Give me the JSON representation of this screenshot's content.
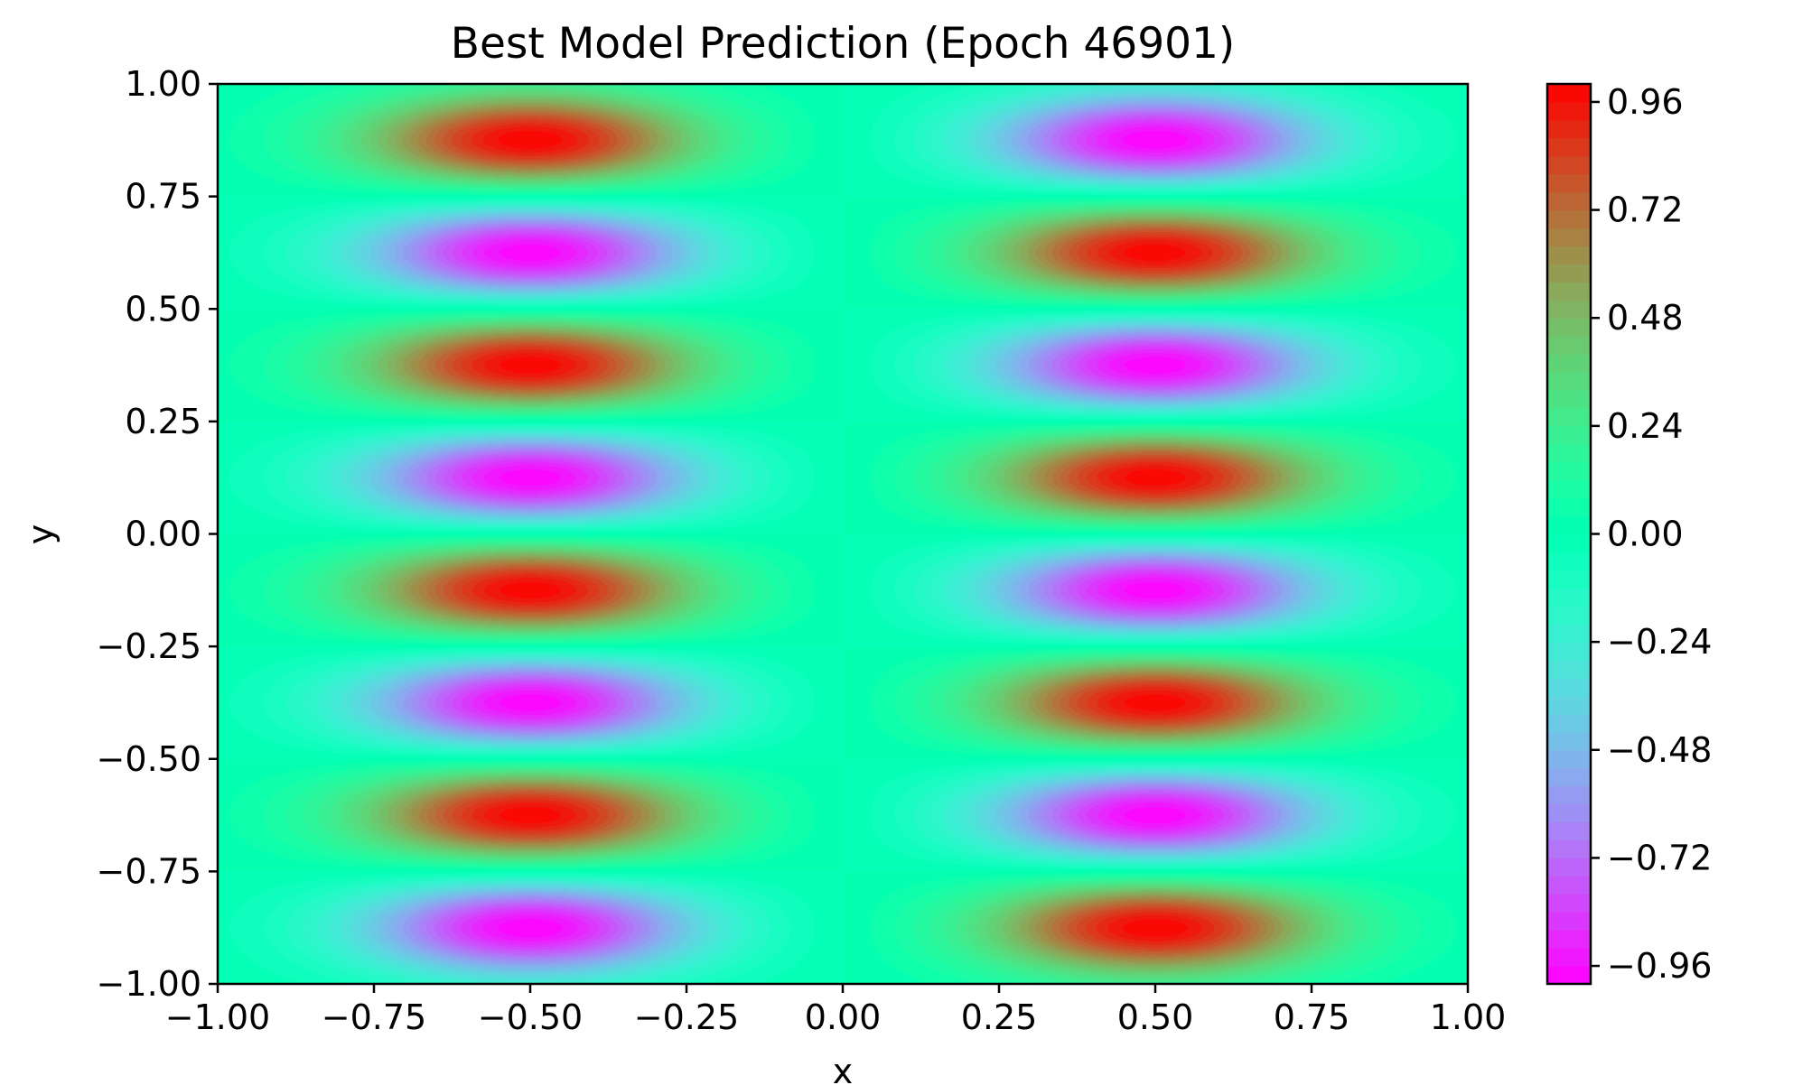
{
  "chart_data": {
    "type": "heatmap",
    "subtype": "filled-contour",
    "title": "Best Model Prediction (Epoch 46901)",
    "xlabel": "x",
    "ylabel": "y",
    "xlim": [
      -1.0,
      1.0
    ],
    "ylim": [
      -1.0,
      1.0
    ],
    "x_ticks": [
      "−1.00",
      "−0.75",
      "−0.50",
      "−0.25",
      "0.00",
      "0.25",
      "0.50",
      "0.75",
      "1.00"
    ],
    "y_ticks": [
      "−1.00",
      "−0.75",
      "−0.50",
      "−0.25",
      "0.00",
      "0.25",
      "0.50",
      "0.75",
      "1.00"
    ],
    "colormap": "rainbow",
    "grid": false,
    "value_range": [
      -1.0,
      1.0
    ],
    "colorbar": {
      "position": "right",
      "ticks": [
        0.96,
        0.72,
        0.48,
        0.24,
        0.0,
        -0.24,
        -0.48,
        -0.72,
        -0.96
      ],
      "tick_labels": [
        "0.96",
        "0.72",
        "0.48",
        "0.24",
        "0.00",
        "−0.24",
        "−0.48",
        "−0.72",
        "−0.96"
      ]
    },
    "extrema": [
      {
        "x": -0.5,
        "y": 0.875,
        "value": 1.0
      },
      {
        "x": -0.5,
        "y": 0.625,
        "value": -1.0
      },
      {
        "x": -0.5,
        "y": 0.375,
        "value": 1.0
      },
      {
        "x": -0.5,
        "y": 0.125,
        "value": -1.0
      },
      {
        "x": -0.5,
        "y": -0.125,
        "value": 1.0
      },
      {
        "x": -0.5,
        "y": -0.375,
        "value": -1.0
      },
      {
        "x": -0.5,
        "y": -0.625,
        "value": 1.0
      },
      {
        "x": -0.5,
        "y": -0.875,
        "value": -1.0
      },
      {
        "x": 0.5,
        "y": 0.875,
        "value": -1.0
      },
      {
        "x": 0.5,
        "y": 0.625,
        "value": 1.0
      },
      {
        "x": 0.5,
        "y": 0.375,
        "value": -1.0
      },
      {
        "x": 0.5,
        "y": 0.125,
        "value": 1.0
      },
      {
        "x": 0.5,
        "y": -0.125,
        "value": -1.0
      },
      {
        "x": 0.5,
        "y": -0.375,
        "value": 1.0
      },
      {
        "x": 0.5,
        "y": -0.625,
        "value": -1.0
      },
      {
        "x": 0.5,
        "y": -0.875,
        "value": 1.0
      }
    ]
  }
}
